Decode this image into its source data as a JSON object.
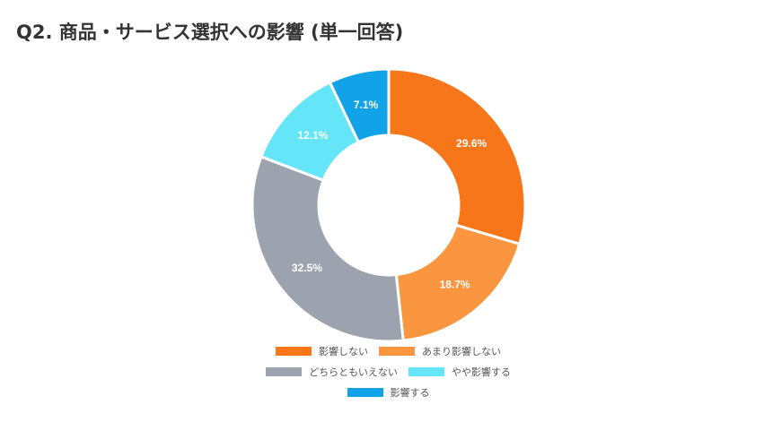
{
  "chart_data": {
    "type": "pie",
    "title": "Q2. 商品・サービス選択への影響 (単一回答)",
    "categories": [
      "影響しない",
      "あまり影響しない",
      "どちらともいえない",
      "やや影響する",
      "影響する"
    ],
    "values": [
      29.6,
      18.7,
      32.5,
      12.1,
      7.1
    ],
    "value_labels": [
      "29.6%",
      "18.7%",
      "32.5%",
      "12.1%",
      "7.1%"
    ],
    "colors": [
      "#F77619",
      "#F9963F",
      "#9DA3AE",
      "#64E5F8",
      "#11A2E8"
    ],
    "donut": true,
    "legend_position": "bottom"
  }
}
